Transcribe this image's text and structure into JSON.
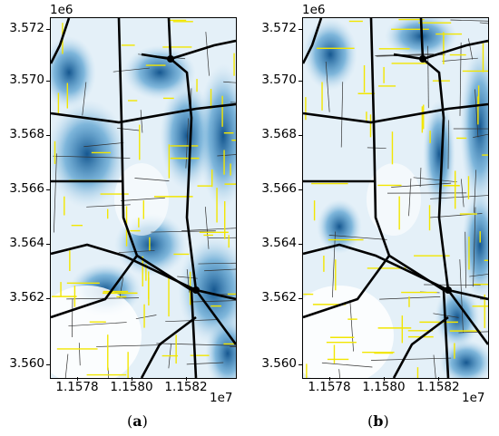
{
  "panels": [
    {
      "caption_letter": "a",
      "y_offset": "1e6",
      "x_offset": "1e7",
      "y_ticks": [
        "3.572",
        "3.570",
        "3.568",
        "3.566",
        "3.564",
        "3.562",
        "3.560"
      ],
      "x_ticks": [
        "1.1578",
        "1.1580",
        "1.1582"
      ]
    },
    {
      "caption_letter": "b",
      "y_offset": "1e6",
      "x_offset": "1e7",
      "y_ticks": [
        "3.572",
        "3.570",
        "3.568",
        "3.566",
        "3.564",
        "3.562",
        "3.560"
      ],
      "x_ticks": [
        "1.1578",
        "1.1580",
        "1.1582"
      ]
    }
  ],
  "colors": {
    "heat_dark": "#0b4f8a",
    "heat_mid": "#3a8fc7",
    "heat_light": "#b6d8ee",
    "road_major": "#000000",
    "road_highlight": "#f2e600"
  }
}
